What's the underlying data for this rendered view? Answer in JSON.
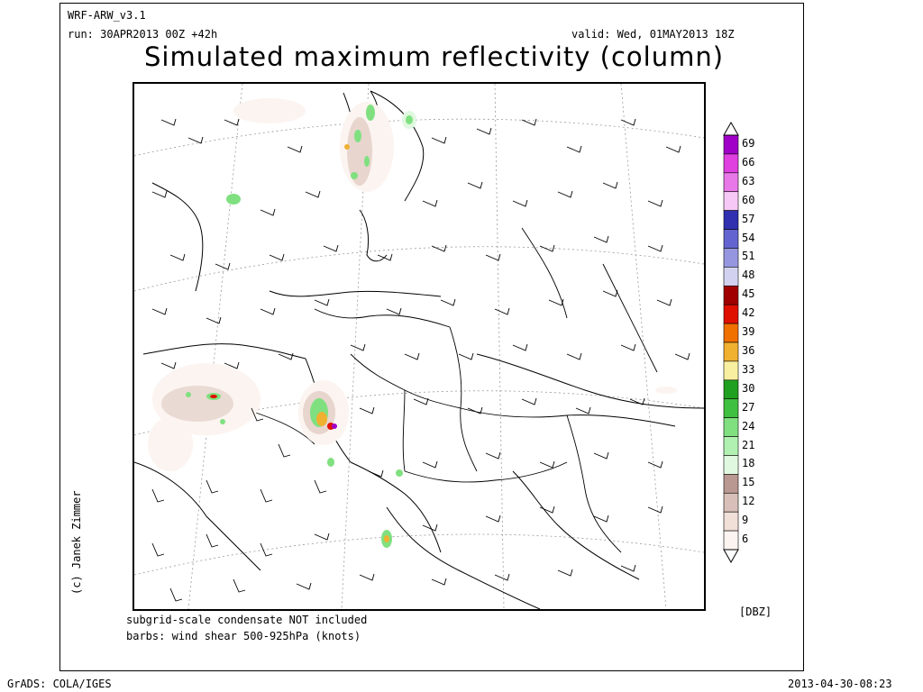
{
  "header": {
    "model": "WRF-ARW_v3.1",
    "run": "run: 30APR2013 00Z +42h",
    "valid": "valid: Wed, 01MAY2013 18Z",
    "title": "Simulated maximum reflectivity (column)"
  },
  "notes": {
    "line1": "subgrid-scale condensate NOT included",
    "line2": "barbs: wind shear 500-925hPa (knots)"
  },
  "credit": "(c) Janek Zimmer",
  "footer": {
    "left": "GrADS: COLA/IGES",
    "right": "2013-04-30-08:23"
  },
  "colorbar": {
    "unit": "[DBZ]",
    "levels": [
      "69",
      "66",
      "63",
      "60",
      "57",
      "54",
      "51",
      "48",
      "45",
      "42",
      "39",
      "36",
      "33",
      "30",
      "27",
      "24",
      "21",
      "18",
      "15",
      "12",
      "9",
      "6"
    ],
    "colors": [
      "#a000c8",
      "#e040e0",
      "#e878e8",
      "#f5c8f5",
      "#3030b0",
      "#6464d0",
      "#9696e0",
      "#d2d2f0",
      "#a00000",
      "#e01000",
      "#f07000",
      "#f0b030",
      "#f8f0a0",
      "#20a020",
      "#40c040",
      "#80e080",
      "#b0f0b0",
      "#e0f8e0",
      "#b89890",
      "#d8c0b8",
      "#f0e0d8",
      "#fcf4f0"
    ]
  }
}
